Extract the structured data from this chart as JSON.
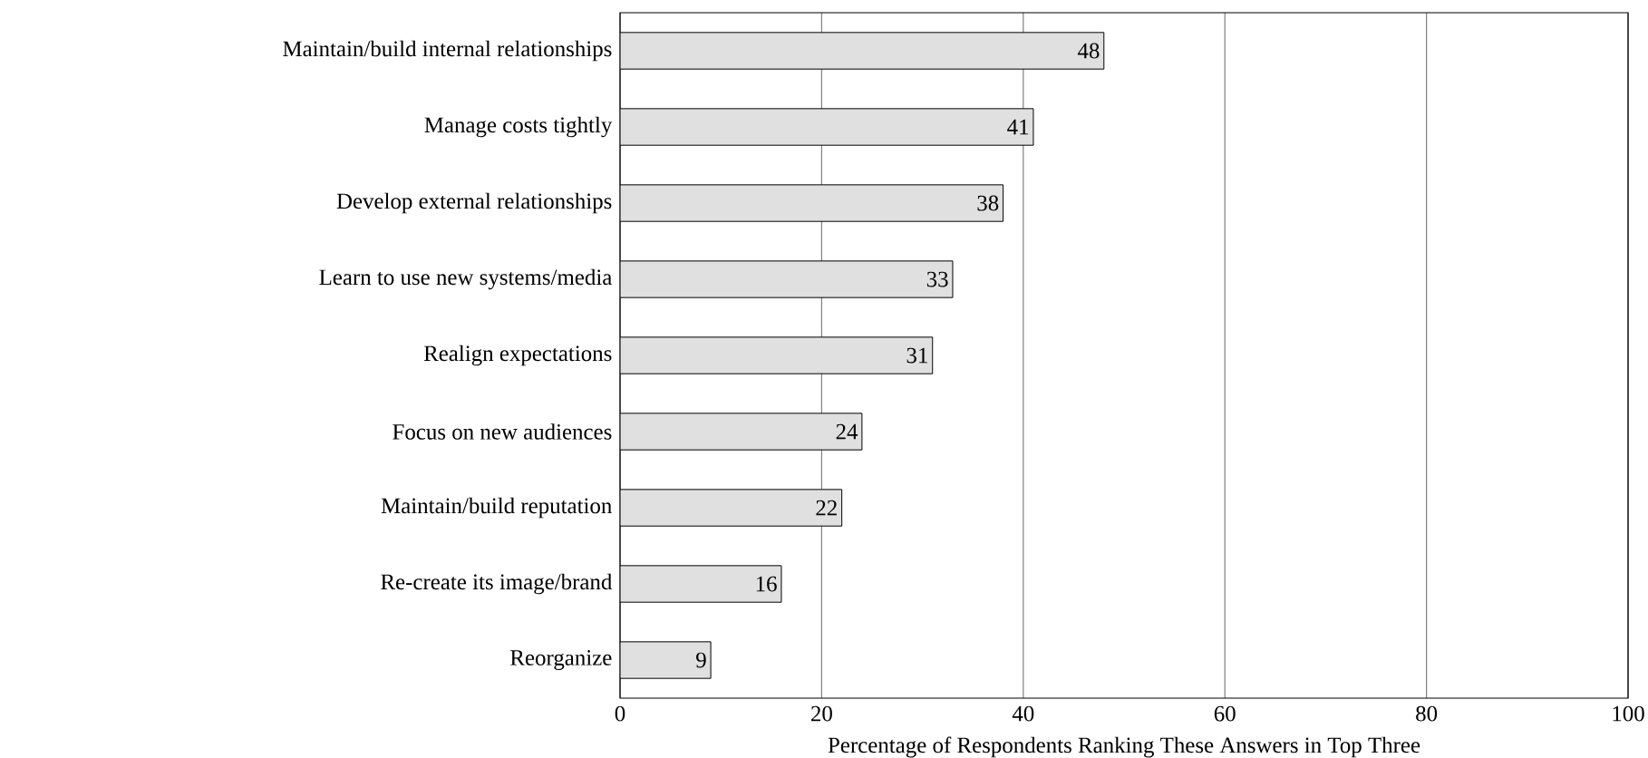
{
  "chart_data": {
    "type": "bar",
    "orientation": "horizontal",
    "xlabel": "Percentage of Respondents Ranking These Answers in Top Three",
    "categories": [
      "Maintain/build internal relationships",
      "Manage costs tightly",
      "Develop external relationships",
      "Learn to use new systems/media",
      "Realign expectations",
      "Focus on new audiences",
      "Maintain/build reputation",
      "Re-create its image/brand",
      "Reorganize"
    ],
    "values": [
      48,
      41,
      38,
      33,
      31,
      24,
      22,
      16,
      9
    ],
    "color": "#e0e0e0",
    "data_labels": true,
    "xlim": [
      0,
      100
    ],
    "xticks": [
      0,
      20,
      40,
      60,
      80,
      100
    ],
    "grid": "x"
  }
}
